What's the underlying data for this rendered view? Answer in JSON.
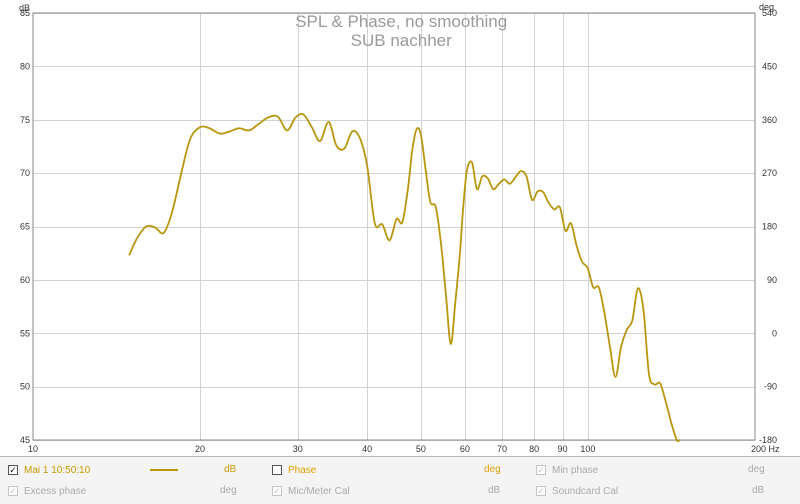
{
  "chart_data": {
    "type": "line",
    "title": "SPL & Phase, no smoothing",
    "subtitle": "SUB nachher",
    "x_scale": "log",
    "xlim": [
      10,
      200
    ],
    "ylim": [
      45,
      85
    ],
    "y2lim": [
      -180,
      540
    ],
    "x_ticks": [
      {
        "value": 10,
        "label": "10"
      },
      {
        "value": 20,
        "label": "20"
      },
      {
        "value": 30,
        "label": "30"
      },
      {
        "value": 40,
        "label": "40"
      },
      {
        "value": 50,
        "label": "50"
      },
      {
        "value": 60,
        "label": "60"
      },
      {
        "value": 70,
        "label": "70"
      },
      {
        "value": 80,
        "label": "80"
      },
      {
        "value": 90,
        "label": "90"
      },
      {
        "value": 100,
        "label": "100"
      },
      {
        "value": 200,
        "label": "200 Hz"
      }
    ],
    "y_ticks": [
      {
        "value": 85,
        "label": "85"
      },
      {
        "value": 80,
        "label": "80"
      },
      {
        "value": 75,
        "label": "75"
      },
      {
        "value": 70,
        "label": "70"
      },
      {
        "value": 65,
        "label": "65"
      },
      {
        "value": 60,
        "label": "60"
      },
      {
        "value": 55,
        "label": "55"
      },
      {
        "value": 50,
        "label": "50"
      },
      {
        "value": 45,
        "label": "45"
      }
    ],
    "y2_ticks": [
      {
        "value": 540,
        "label": "540"
      },
      {
        "value": 450,
        "label": "450"
      },
      {
        "value": 360,
        "label": "360"
      },
      {
        "value": 270,
        "label": "270"
      },
      {
        "value": 180,
        "label": "180"
      },
      {
        "value": 90,
        "label": "90"
      },
      {
        "value": 0,
        "label": "0"
      },
      {
        "value": -90,
        "label": "-90"
      },
      {
        "value": -180,
        "label": "-180"
      }
    ],
    "ylabel": "dB",
    "y2label": "deg",
    "grid": true,
    "series": [
      {
        "name": "Mai 1 10:50:10",
        "color": "#b8960e",
        "x": [
          14.9,
          15.4,
          16.0,
          16.6,
          17.2,
          17.8,
          18.5,
          19.2,
          20.0,
          20.8,
          21.7,
          22.6,
          23.5,
          24.5,
          25.5,
          26.5,
          27.6,
          28.7,
          29.7,
          30.7,
          31.8,
          32.9,
          34.1,
          35.2,
          36.4,
          37.6,
          38.8,
          40.0,
          41.3,
          42.6,
          43.9,
          45.2,
          46.3,
          47.4,
          48.2,
          49.1,
          50.0,
          51.0,
          52.0,
          53.2,
          54.4,
          55.5,
          56.6,
          57.7,
          58.8,
          59.5,
          60.5,
          61.8,
          63.1,
          64.5,
          66.0,
          67.5,
          69.1,
          70.7,
          72.3,
          74.0,
          75.7,
          77.5,
          79.3,
          81.2,
          83.1,
          85.0,
          87.0,
          89.0,
          91.1,
          93.2,
          95.4,
          97.6,
          99.9,
          102.2,
          104.6,
          107.0,
          109.5,
          112.1,
          114.7,
          117.4,
          120.2,
          123.0,
          125.9,
          128.8,
          131.8,
          134.9,
          138.1,
          141.3,
          144.6,
          146.2
        ],
        "y": [
          62.3,
          63.9,
          65.0,
          64.9,
          64.4,
          66.3,
          70.0,
          73.2,
          74.3,
          74.2,
          73.7,
          73.9,
          74.2,
          74.0,
          74.6,
          75.2,
          75.3,
          74.0,
          75.2,
          75.5,
          74.3,
          73.0,
          74.8,
          72.6,
          72.3,
          73.9,
          73.3,
          70.7,
          65.3,
          65.2,
          63.7,
          65.7,
          65.4,
          68.6,
          72.0,
          74.1,
          73.6,
          70.3,
          67.3,
          66.8,
          63.2,
          58.5,
          54.0,
          58.0,
          62.5,
          66.3,
          70.2,
          71.0,
          68.5,
          69.7,
          69.5,
          68.5,
          69.0,
          69.4,
          69.0,
          69.6,
          70.2,
          69.7,
          67.5,
          68.3,
          68.2,
          67.2,
          66.6,
          66.8,
          64.6,
          65.3,
          63.2,
          61.7,
          61.1,
          59.3,
          59.3,
          57.0,
          53.8,
          50.9,
          53.7,
          55.3,
          56.2,
          59.2,
          57.2,
          51.2,
          50.2,
          50.3,
          48.6,
          46.6,
          45.0,
          45.0
        ]
      }
    ]
  },
  "legend": {
    "row1": [
      {
        "label": "Mai 1 10:50:10",
        "checked": true,
        "enabled": true,
        "unit": "dB"
      },
      {
        "label": "Phase",
        "checked": false,
        "enabled": true,
        "unit": "deg"
      },
      {
        "label": "Min phase",
        "checked": true,
        "enabled": false,
        "unit": "deg"
      }
    ],
    "row2": [
      {
        "label": "Excess phase",
        "checked": true,
        "enabled": false,
        "unit": "deg"
      },
      {
        "label": "Mic/Meter Cal",
        "checked": true,
        "enabled": false,
        "unit": "dB"
      },
      {
        "label": "Soundcard Cal",
        "checked": true,
        "enabled": false,
        "unit": "dB"
      }
    ]
  }
}
